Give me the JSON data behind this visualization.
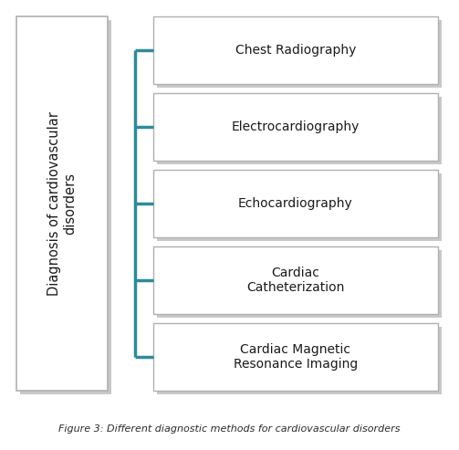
{
  "title": "Diagnosis of cardiovascular\ndisorders",
  "items": [
    "Chest Radiography",
    "Electrocardiography",
    "Echocardiography",
    "Cardiac\nCatheterization",
    "Cardiac Magnetic\nResonance Imaging"
  ],
  "caption": "Figure 3: Different diagnostic methods for cardiovascular disorders",
  "box_facecolor": "#ffffff",
  "box_edgecolor": "#b0b0b0",
  "shadow_color": "#c8c8c8",
  "line_color": "#2e8b9a",
  "text_color": "#1a1a1a",
  "caption_color": "#2a2a2a",
  "bg_color": "#ffffff",
  "fig_width": 5.03,
  "fig_height": 4.93,
  "dpi": 100
}
